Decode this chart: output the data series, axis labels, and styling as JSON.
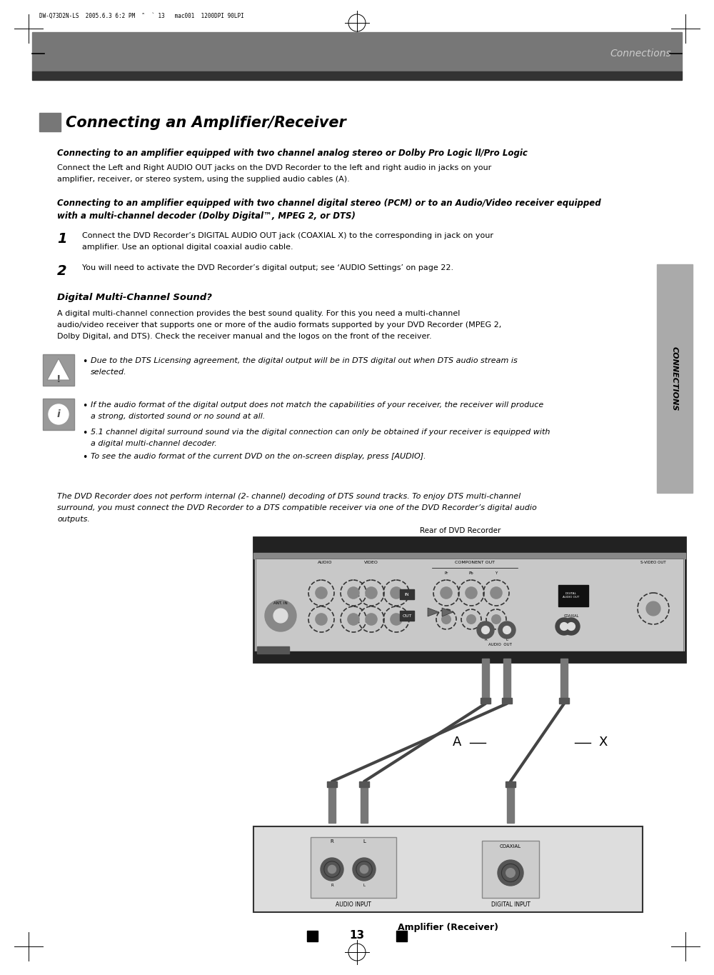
{
  "bg_color": "#ffffff",
  "header_bar_color": "#777777",
  "header_bar_color2": "#333333",
  "header_text": "Connections",
  "header_text_color": "#cccccc",
  "top_bar_text": "DW-Q73D2N-LS  2005.6.3 6:2 PM  ˜  ` 13   mac001  1200DPI 90LPI",
  "section_title": "Connecting an Amplifier/Receiver",
  "section_bar_color": "#777777",
  "sub_heading1": "Connecting to an amplifier equipped with two channel analog stereo or Dolby Pro Logic ll/Pro Logic",
  "body1_l1": "Connect the Left and Right AUDIO OUT jacks on the DVD Recorder to the left and right audio in jacks on your",
  "body1_l2": "amplifier, receiver, or stereo system, using the supplied audio cables (A).",
  "sub_heading2_l1": "Connecting to an amplifier equipped with two channel digital stereo (PCM) or to an Audio/Video receiver equipped",
  "sub_heading2_l2": "with a multi-channel decoder (Dolby Digital™, MPEG 2, or DTS)",
  "step1_num": "1",
  "step1_l1": "Connect the DVD Recorder’s DIGITAL AUDIO OUT jack (COAXIAL X) to the corresponding in jack on your",
  "step1_l2": "amplifier. Use an optional digital coaxial audio cable.",
  "step2_num": "2",
  "step2_text": "You will need to activate the DVD Recorder’s digital output; see ‘AUDIO Settings’ on page 22.",
  "sub_heading3": "Digital Multi-Channel Sound?",
  "body3_l1": "A digital multi-channel connection provides the best sound quality. For this you need a multi-channel",
  "body3_l2": "audio/video receiver that supports one or more of the audio formats supported by your DVD Recorder (MPEG 2,",
  "body3_l3": "Dolby Digital, and DTS). Check the receiver manual and the logos on the front of the receiver.",
  "note1_bullet": "Due to the DTS Licensing agreement, the digital output will be in DTS digital out when DTS audio stream is",
  "note1_bullet2": "selected.",
  "note2_b1_l1": "If the audio format of the digital output does not match the capabilities of your receiver, the receiver will produce",
  "note2_b1_l2": "a strong, distorted sound or no sound at all.",
  "note2_b2_l1": "5.1 channel digital surround sound via the digital connection can only be obtained if your receiver is equipped with",
  "note2_b2_l2": "a digital multi-channel decoder.",
  "note2_b3": "To see the audio format of the current DVD on the on-screen display, press [AUDIO].",
  "italic_l1": "The DVD Recorder does not perform internal (2- channel) decoding of DTS sound tracks. To enjoy DTS multi-channel",
  "italic_l2": "surround, you must connect the DVD Recorder to a DTS compatible receiver via one of the DVD Recorder’s digital audio",
  "italic_l3": "outputs.",
  "diagram_caption_top": "Rear of DVD Recorder",
  "diagram_caption_bottom": "Amplifier (Receiver)",
  "connections_label": "CONNECTIONS",
  "sidebar_color": "#aaaaaa",
  "page_number": "13"
}
